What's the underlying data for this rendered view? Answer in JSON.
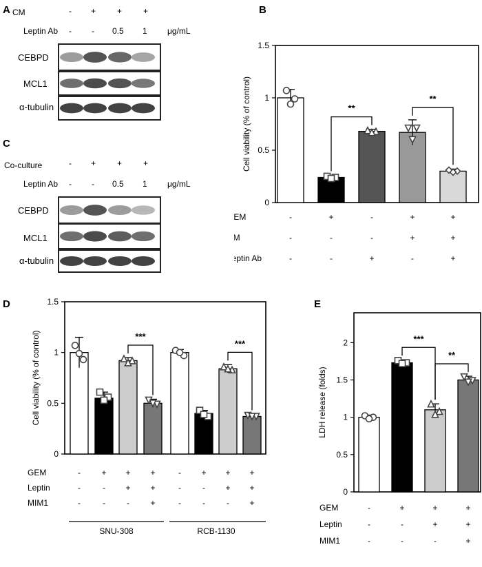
{
  "panel_A": {
    "label": "A",
    "rows": [
      {
        "name": "CM",
        "values": [
          "-",
          "+",
          "+",
          "+"
        ],
        "unit": ""
      },
      {
        "name": "Leptin Ab",
        "values": [
          "-",
          "-",
          "0.5",
          "1"
        ],
        "unit": "μg/mL"
      }
    ],
    "blots": [
      "CEBPD",
      "MCL1",
      "α-tubulin"
    ],
    "band_intensity": [
      [
        0.45,
        0.85,
        0.75,
        0.4
      ],
      [
        0.7,
        0.9,
        0.85,
        0.65
      ],
      [
        0.95,
        0.95,
        0.95,
        0.95
      ]
    ]
  },
  "panel_C": {
    "label": "C",
    "rows": [
      {
        "name": "Co-culture",
        "values": [
          "-",
          "+",
          "+",
          "+"
        ],
        "unit": ""
      },
      {
        "name": "Leptin Ab",
        "values": [
          "-",
          "-",
          "0.5",
          "1"
        ],
        "unit": "μg/mL"
      }
    ],
    "blots": [
      "CEBPD",
      "MCL1",
      "α-tubulin"
    ],
    "band_intensity": [
      [
        0.45,
        0.85,
        0.45,
        0.3
      ],
      [
        0.7,
        0.9,
        0.8,
        0.7
      ],
      [
        0.95,
        0.95,
        0.95,
        0.95
      ]
    ]
  },
  "chart_data": [
    {
      "panel": "B",
      "type": "bar",
      "ylabel": "Cell viability (% of control)",
      "ylim": [
        0,
        1.5
      ],
      "yticks": [
        "0",
        "0.5",
        "1",
        "1.5"
      ],
      "values": [
        1.0,
        0.24,
        0.68,
        0.67,
        0.3
      ],
      "errors": [
        0.08,
        0.02,
        0.02,
        0.12,
        0.02
      ],
      "colors": [
        "#ffffff",
        "#000000",
        "#555555",
        "#999999",
        "#d9d9d9"
      ],
      "points": [
        [
          1.07,
          0.99,
          0.94
        ],
        [
          0.25,
          0.24,
          0.23
        ],
        [
          0.69,
          0.68,
          0.67
        ],
        [
          0.71,
          0.71,
          0.6
        ],
        [
          0.31,
          0.3,
          0.29
        ]
      ],
      "markers": [
        "circle",
        "square",
        "triangle",
        "triangle-down",
        "diamond"
      ],
      "condition_rows": [
        {
          "name": "GEM",
          "values": [
            "-",
            "+",
            "-",
            "+",
            "+"
          ]
        },
        {
          "name": "CM",
          "values": [
            "-",
            "-",
            "-",
            "+",
            "+"
          ]
        },
        {
          "name": "Leptin Ab",
          "values": [
            "-",
            "-",
            "+",
            "-",
            "+"
          ]
        }
      ],
      "significance": [
        {
          "from": 1,
          "to": 2,
          "label": "**"
        },
        {
          "from": 3,
          "to": 4,
          "label": "**"
        }
      ]
    },
    {
      "panel": "D",
      "type": "bar",
      "ylabel": "Cell viability (% of control)",
      "ylim": [
        0,
        1.5
      ],
      "yticks": [
        "0",
        "0.5",
        "1",
        "1.5"
      ],
      "groups": [
        "SNU-308",
        "RCB-1130"
      ],
      "values": [
        1.0,
        0.55,
        0.92,
        0.5,
        1.0,
        0.4,
        0.84,
        0.37
      ],
      "errors": [
        0.15,
        0.06,
        0.03,
        0.04,
        0.03,
        0.03,
        0.04,
        0.02
      ],
      "colors": [
        "#ffffff",
        "#000000",
        "#cccccc",
        "#777777",
        "#ffffff",
        "#000000",
        "#cccccc",
        "#777777"
      ],
      "points": [
        [
          1.07,
          0.93,
          0.99
        ],
        [
          0.61,
          0.56,
          0.53
        ],
        [
          0.94,
          0.92,
          0.9
        ],
        [
          0.53,
          0.49,
          0.5
        ],
        [
          1.02,
          0.97,
          1.0
        ],
        [
          0.43,
          0.37,
          0.39
        ],
        [
          0.86,
          0.83,
          0.84
        ],
        [
          0.38,
          0.37,
          0.37
        ]
      ],
      "markers": [
        "circle",
        "square",
        "triangle",
        "triangle-down",
        "circle",
        "square",
        "triangle",
        "triangle-down"
      ],
      "condition_rows": [
        {
          "name": "GEM",
          "values": [
            "-",
            "+",
            "+",
            "+",
            "-",
            "+",
            "+",
            "+"
          ]
        },
        {
          "name": "Leptin",
          "values": [
            "-",
            "-",
            "+",
            "+",
            "-",
            "-",
            "+",
            "+"
          ]
        },
        {
          "name": "MIM1",
          "values": [
            "-",
            "-",
            "-",
            "+",
            "-",
            "-",
            "-",
            "+"
          ]
        }
      ],
      "significance": [
        {
          "from": 2,
          "to": 3,
          "label": "***"
        },
        {
          "from": 6,
          "to": 7,
          "label": "***"
        }
      ]
    },
    {
      "panel": "E",
      "type": "bar",
      "ylabel": "LDH release (folds)",
      "ylim": [
        0,
        2.4
      ],
      "yticks": [
        "0",
        "0.5",
        "1",
        "1.5",
        "2"
      ],
      "values": [
        1.0,
        1.73,
        1.1,
        1.5
      ],
      "errors": [
        0.03,
        0.04,
        0.08,
        0.05
      ],
      "colors": [
        "#ffffff",
        "#000000",
        "#cccccc",
        "#777777"
      ],
      "points": [
        [
          1.02,
          1.0,
          0.98
        ],
        [
          1.76,
          1.73,
          1.72
        ],
        [
          1.18,
          1.08,
          1.04
        ],
        [
          1.54,
          1.49,
          1.47
        ]
      ],
      "markers": [
        "circle",
        "square",
        "triangle",
        "triangle-down"
      ],
      "condition_rows": [
        {
          "name": "GEM",
          "values": [
            "-",
            "+",
            "+",
            "+"
          ]
        },
        {
          "name": "Leptin",
          "values": [
            "-",
            "-",
            "+",
            "+"
          ]
        },
        {
          "name": "MIM1",
          "values": [
            "-",
            "-",
            "-",
            "+"
          ]
        }
      ],
      "significance": [
        {
          "from": 1,
          "to": 2,
          "label": "***"
        },
        {
          "from": 2,
          "to": 3,
          "label": "**"
        }
      ]
    }
  ]
}
